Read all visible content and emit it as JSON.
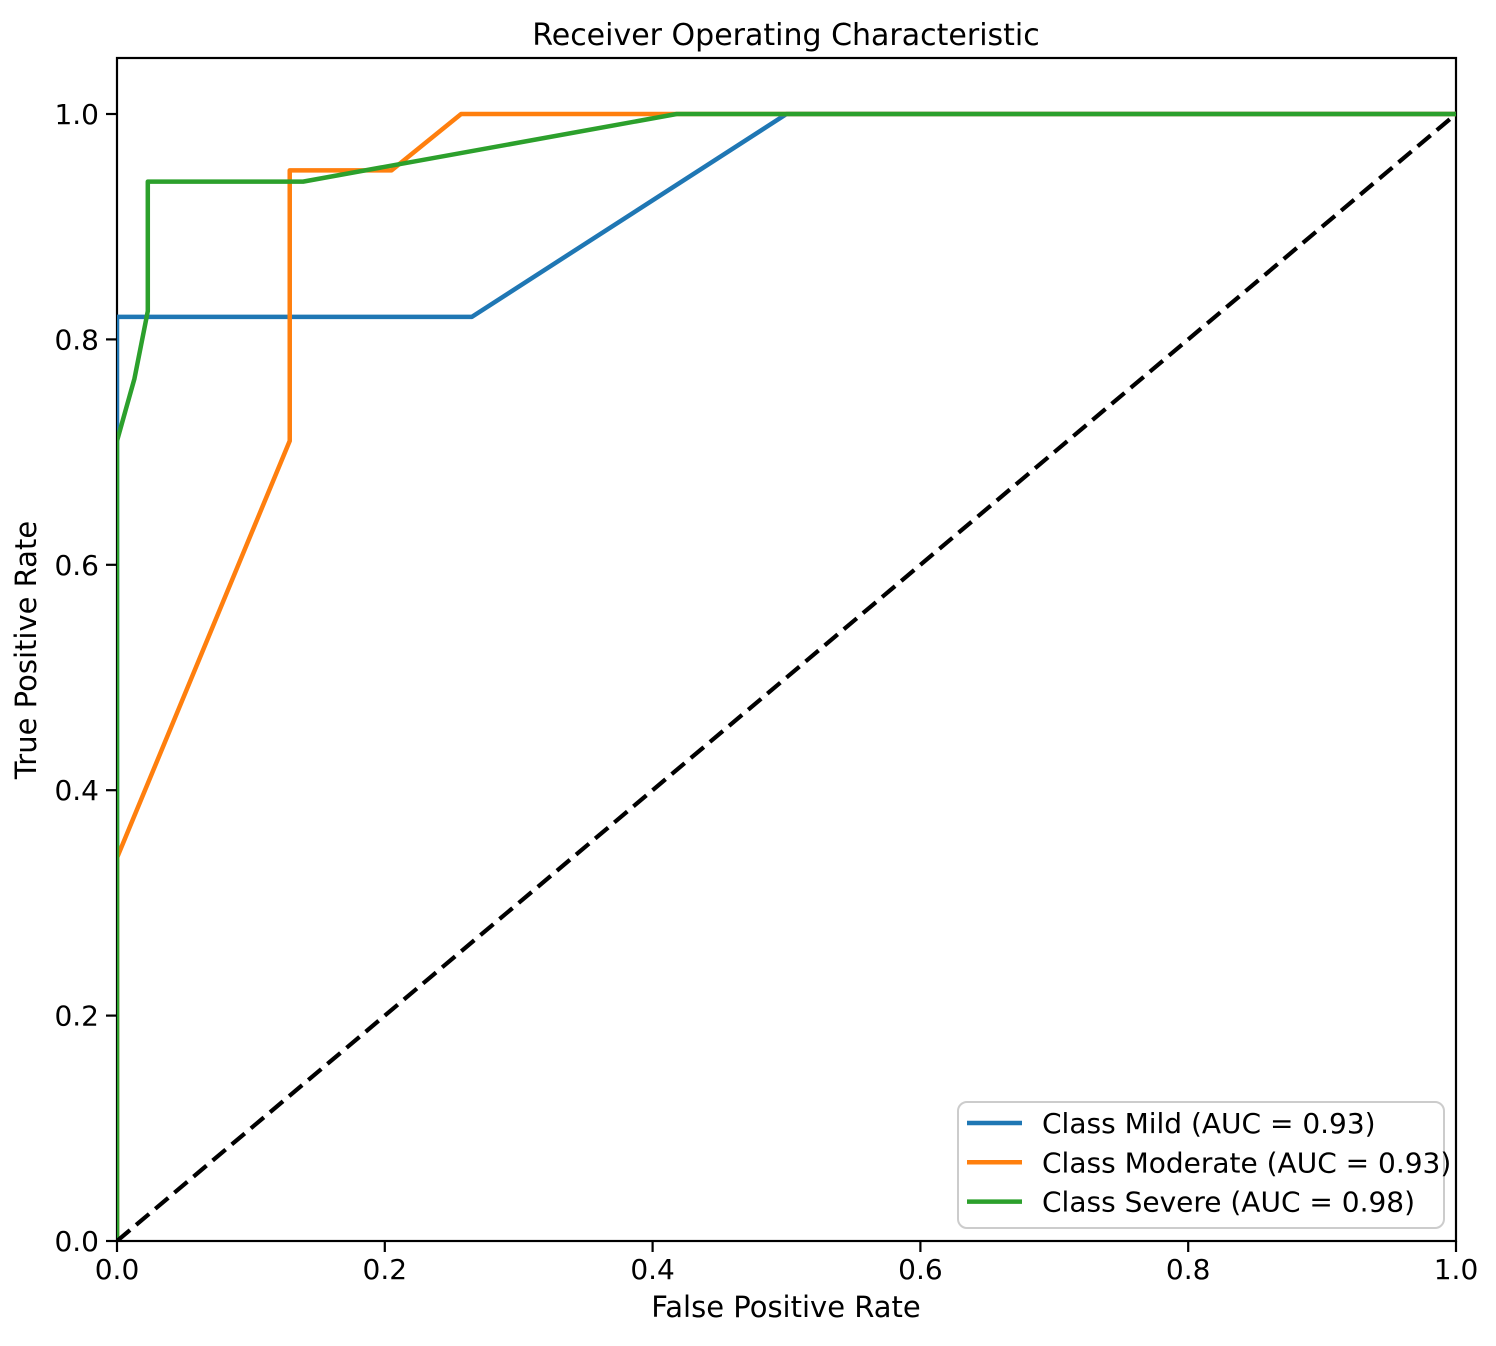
{
  "figure": {
    "background": "#ffffff",
    "frame_color": "#000000"
  },
  "chart_data": {
    "type": "line",
    "title": "Receiver Operating Characteristic",
    "xlabel": "False Positive Rate",
    "ylabel": "True Positive Rate",
    "xlim": [
      0,
      1
    ],
    "ylim": [
      0,
      1.05
    ],
    "xticks": [
      "0.0",
      "0.2",
      "0.4",
      "0.6",
      "0.8",
      "1.0"
    ],
    "yticks": [
      "0.0",
      "0.2",
      "0.4",
      "0.6",
      "0.8",
      "1.0"
    ],
    "grid": false,
    "legend_position": "lower right",
    "series": [
      {
        "id": "mild",
        "name": "Class Mild (AUC = 0.93)",
        "auc": 0.93,
        "color": "#1f77b4",
        "points": [
          [
            0,
            0
          ],
          [
            0,
            0.82
          ],
          [
            0.265,
            0.82
          ],
          [
            0.5,
            1.0
          ],
          [
            1.0,
            1.0
          ]
        ]
      },
      {
        "id": "moderate",
        "name": "Class Moderate (AUC = 0.93)",
        "auc": 0.93,
        "color": "#ff7f0e",
        "points": [
          [
            0,
            0
          ],
          [
            0,
            0.34
          ],
          [
            0.129,
            0.71
          ],
          [
            0.129,
            0.95
          ],
          [
            0.205,
            0.95
          ],
          [
            0.257,
            1.0
          ],
          [
            1.0,
            1.0
          ]
        ]
      },
      {
        "id": "severe",
        "name": "Class Severe (AUC = 0.98)",
        "auc": 0.98,
        "color": "#2ca02c",
        "points": [
          [
            0,
            0
          ],
          [
            0,
            0.71
          ],
          [
            0.013,
            0.765
          ],
          [
            0.023,
            0.825
          ],
          [
            0.023,
            0.94
          ],
          [
            0.139,
            0.94
          ],
          [
            0.418,
            1.0
          ],
          [
            1.0,
            1.0
          ]
        ]
      }
    ],
    "reference_line": {
      "name": "chance-diagonal",
      "style": "dashed",
      "color": "#000000",
      "points": [
        [
          0,
          0
        ],
        [
          1,
          1
        ]
      ]
    }
  },
  "legend": {
    "border_color": "#cccccc",
    "background": "#ffffff"
  }
}
